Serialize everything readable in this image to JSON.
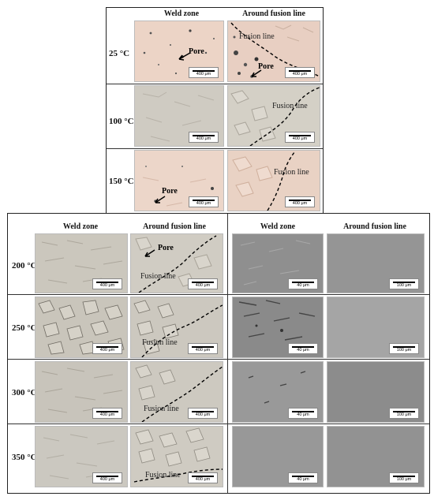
{
  "top_panel": {
    "col_headers": [
      "Weld zone",
      "Around fusion line"
    ],
    "rows": [
      {
        "label": "25 °C",
        "weld_scale": "400 μm",
        "fusion_scale": "400 μm",
        "weld_pore": "Pore",
        "fusion_pore": "Pore",
        "fusion_text": "Fusion line"
      },
      {
        "label": "100 °C",
        "weld_scale": "400 μm",
        "fusion_scale": "400 μm",
        "fusion_text": "Fusion line"
      },
      {
        "label": "150 °C",
        "weld_scale": "400 μm",
        "fusion_scale": "400 μm",
        "weld_pore": "Pore",
        "fusion_text": "Fusion line"
      }
    ]
  },
  "bottom_panel": {
    "col_headers": [
      "Weld zone",
      "Around fusion line",
      "Weld zone",
      "Around fusion line"
    ],
    "rows": [
      {
        "label": "200 °C",
        "scales": [
          "400 μm",
          "400 μm",
          "40 μm",
          "100 μm"
        ],
        "fusion_text": "Fusion line",
        "fusion_pore": "Pore"
      },
      {
        "label": "250 °C",
        "scales": [
          "400 μm",
          "400 μm",
          "40 μm",
          "100 μm"
        ],
        "fusion_text": "Fusion line"
      },
      {
        "label": "300 °C",
        "scales": [
          "400 μm",
          "400 μm",
          "40 μm",
          "100 μm"
        ],
        "fusion_text": "Fusion line"
      },
      {
        "label": "350 °C",
        "scales": [
          "400 μm",
          "400 μm",
          "40 μm",
          "100 μm"
        ],
        "fusion_text": "Fusion line"
      }
    ]
  },
  "colors": {
    "pink_tint": "#e9cfc0",
    "gray_tint": "#c9c6bd",
    "sem_gray": "#8e8e8e",
    "sem_gray_light": "#a2a2a2"
  }
}
